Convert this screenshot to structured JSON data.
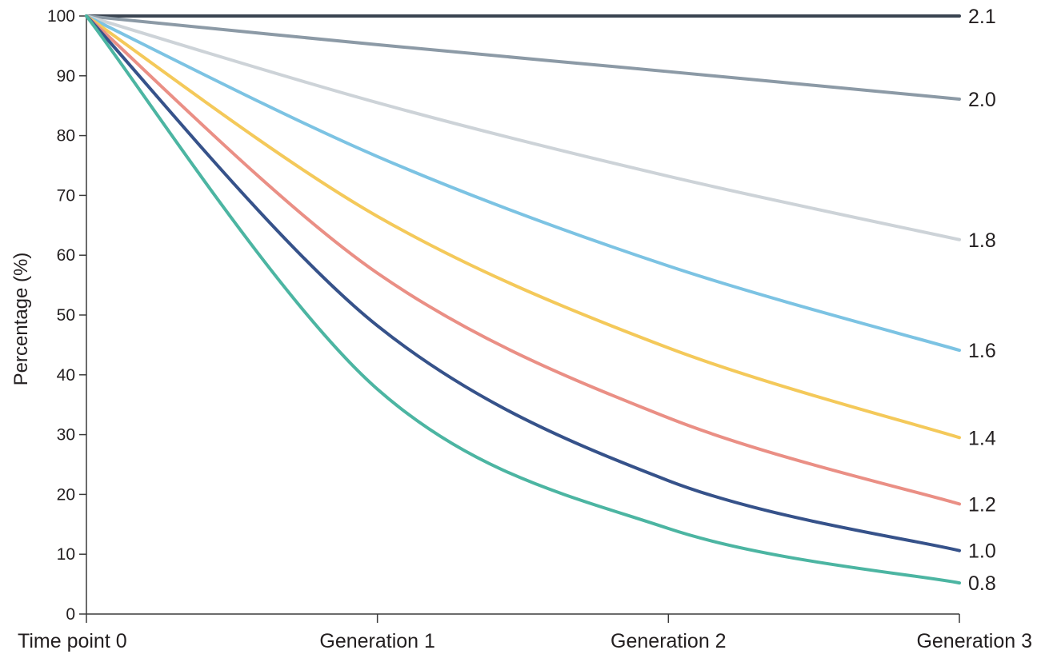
{
  "chart_data": {
    "type": "line",
    "title": "",
    "xlabel": "",
    "ylabel": "Percentage (%)",
    "categories": [
      "Time point 0",
      "Generation 1",
      "Generation 2",
      "Generation 3"
    ],
    "x": [
      0,
      1,
      2,
      3
    ],
    "xlim": [
      0,
      3
    ],
    "ylim": [
      0,
      100
    ],
    "yticks": [
      0,
      10,
      20,
      30,
      40,
      50,
      60,
      70,
      80,
      90,
      100
    ],
    "grid": false,
    "legend": "none",
    "series": [
      {
        "name": "2.1",
        "color": "#3a4451",
        "values": [
          100,
          100,
          100,
          100
        ]
      },
      {
        "name": "2.0",
        "color": "#8c9aa6",
        "values": [
          100,
          95.2,
          90.7,
          86.1
        ]
      },
      {
        "name": "1.8",
        "color": "#cdd3d8",
        "values": [
          100,
          85.5,
          73.2,
          62.6
        ]
      },
      {
        "name": "1.6",
        "color": "#7cc3e3",
        "values": [
          100,
          76.5,
          58.2,
          44.1
        ]
      },
      {
        "name": "1.4",
        "color": "#f4c95a",
        "values": [
          100,
          66.5,
          44.5,
          29.5
        ]
      },
      {
        "name": "1.2",
        "color": "#ea8f85",
        "values": [
          100,
          57.0,
          32.8,
          18.4
        ]
      },
      {
        "name": "1.0",
        "color": "#36528a",
        "values": [
          100,
          48.2,
          22.3,
          10.6
        ]
      },
      {
        "name": "0.8",
        "color": "#4cb5a2",
        "values": [
          100,
          37.6,
          14.3,
          5.2
        ]
      }
    ]
  }
}
